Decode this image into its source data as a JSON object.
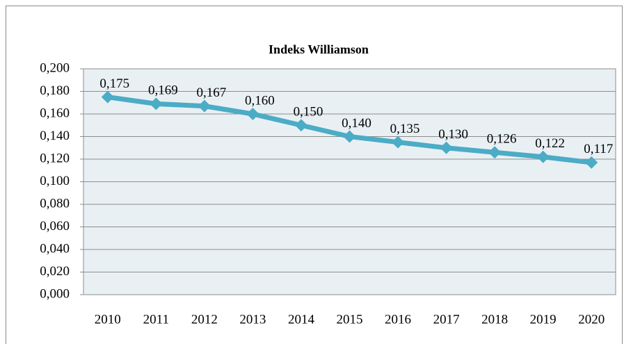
{
  "chart_data": {
    "type": "line",
    "title": "Indeks Williamson",
    "categories": [
      "2010",
      "2011",
      "2012",
      "2013",
      "2014",
      "2015",
      "2016",
      "2017",
      "2018",
      "2019",
      "2020"
    ],
    "values": [
      0.175,
      0.169,
      0.167,
      0.16,
      0.15,
      0.14,
      0.135,
      0.13,
      0.126,
      0.122,
      0.117
    ],
    "value_labels": [
      "0,175",
      "0,169",
      "0,167",
      "0,160",
      "0,150",
      "0,140",
      "0,135",
      "0,130",
      "0,126",
      "0,122",
      "0,117"
    ],
    "color": "#4bacc6",
    "ylim": [
      0,
      0.2
    ],
    "yticks": [
      {
        "value": 0,
        "label": "0,000"
      },
      {
        "value": 0.02,
        "label": "0,020"
      },
      {
        "value": 0.04,
        "label": "0,040"
      },
      {
        "value": 0.06,
        "label": "0,060"
      },
      {
        "value": 0.08,
        "label": "0,080"
      },
      {
        "value": 0.1,
        "label": "0,100"
      },
      {
        "value": 0.12,
        "label": "0,120"
      },
      {
        "value": 0.14,
        "label": "0,140"
      },
      {
        "value": 0.16,
        "label": "0,160"
      },
      {
        "value": 0.18,
        "label": "0,180"
      },
      {
        "value": 0.2,
        "label": "0,200"
      }
    ],
    "grid": true
  }
}
